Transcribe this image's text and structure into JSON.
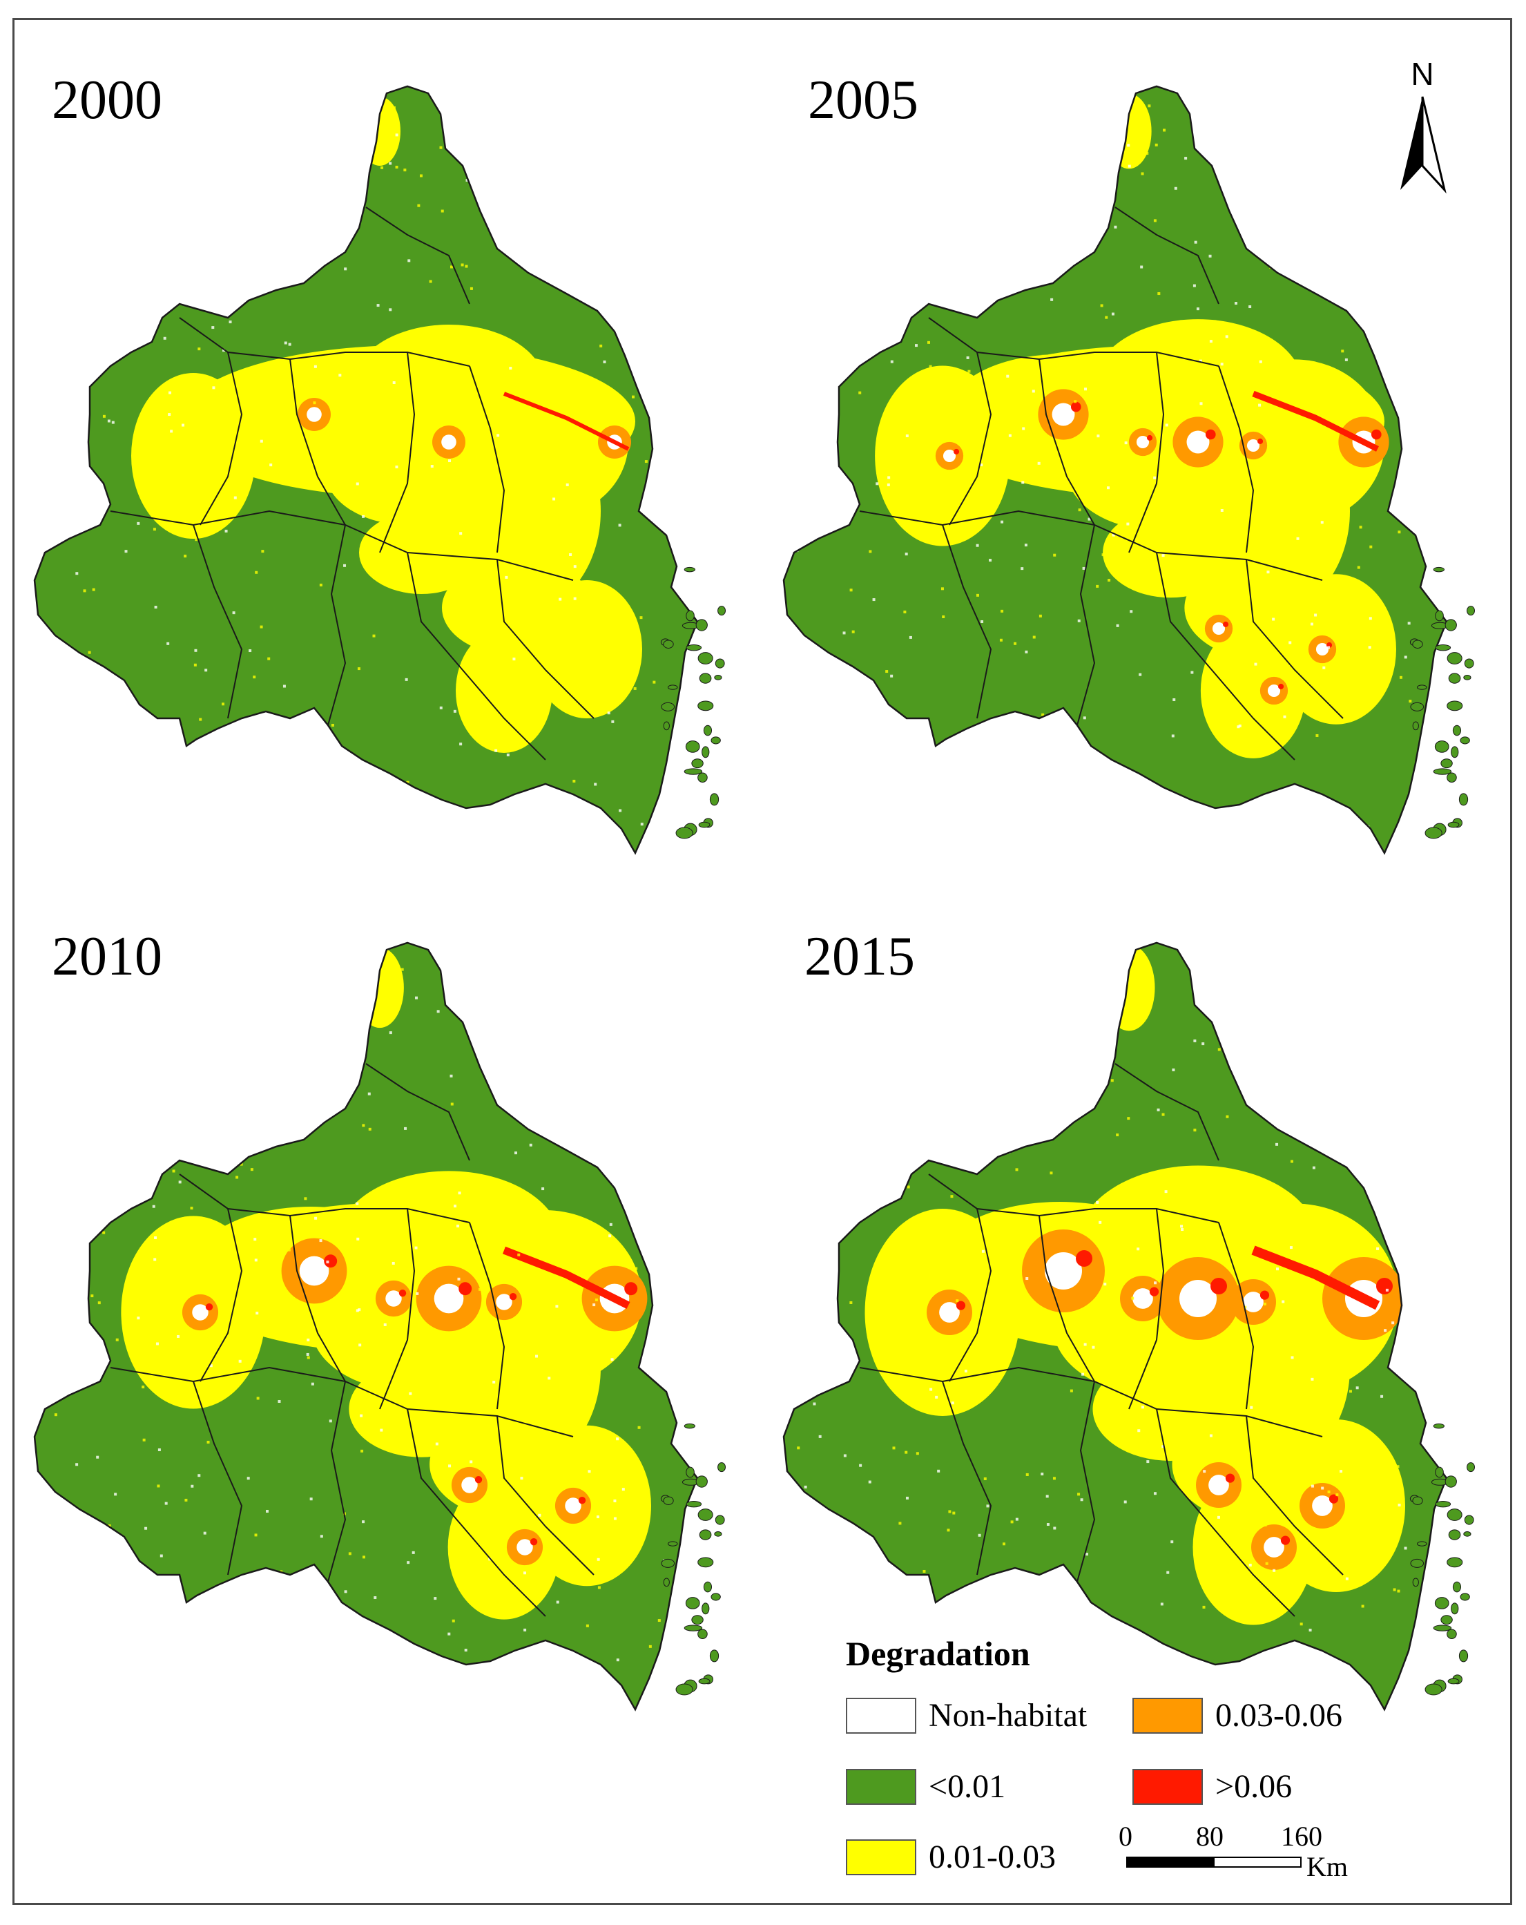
{
  "panels": [
    {
      "year": "2000"
    },
    {
      "year": "2005"
    },
    {
      "year": "2010"
    },
    {
      "year": "2015"
    }
  ],
  "north_arrow": {
    "label": "N"
  },
  "legend": {
    "title": "Degradation",
    "items": [
      {
        "label": "Non-habitat",
        "color": "#ffffff"
      },
      {
        "label": "<0.01",
        "color": "#4e9a1f"
      },
      {
        "label": "0.01-0.03",
        "color": "#ffff00"
      },
      {
        "label": "0.03-0.06",
        "color": "#ff9900"
      },
      {
        "label": ">0.06",
        "color": "#ff1a00"
      }
    ]
  },
  "scale_bar": {
    "ticks": [
      "0",
      "80",
      "160"
    ],
    "unit": "Km"
  },
  "colors": {
    "green": "#4e9a1f",
    "yellow": "#ffff00",
    "orange": "#ff9900",
    "red": "#ff1a00",
    "border": "#1a1a1a"
  },
  "intensity": [
    0.0,
    0.35,
    0.65,
    1.0
  ]
}
